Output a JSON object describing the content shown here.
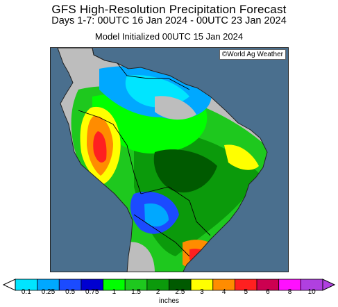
{
  "header": {
    "title": "GFS High-Resolution Precipitation Forecast",
    "period": "Days 1-7: 00UTC 16 Jan 2024 - 00UTC 23 Jan 2024",
    "init": "Model Initialized 00UTC 15 Jan 2024"
  },
  "map": {
    "credit": "©World Ag Weather",
    "region": "South America",
    "ocean_color": "#4a6f8e",
    "land_dry_color": "#bdbdbd"
  },
  "legend": {
    "units": "inches",
    "ticks": [
      "0.1",
      "0.25",
      "0.5",
      "0.75",
      "1",
      "1.5",
      "2",
      "2.5",
      "3",
      "4",
      "5",
      "6",
      "8",
      "10"
    ],
    "colors": [
      "#00e5ff",
      "#00a8ff",
      "#1b4bff",
      "#0000d0",
      "#00ff00",
      "#1ec81e",
      "#0b9a0b",
      "#005a00",
      "#ffff00",
      "#ff8c00",
      "#ff2020",
      "#cc0050",
      "#ff10ff",
      "#b040e0"
    ]
  }
}
